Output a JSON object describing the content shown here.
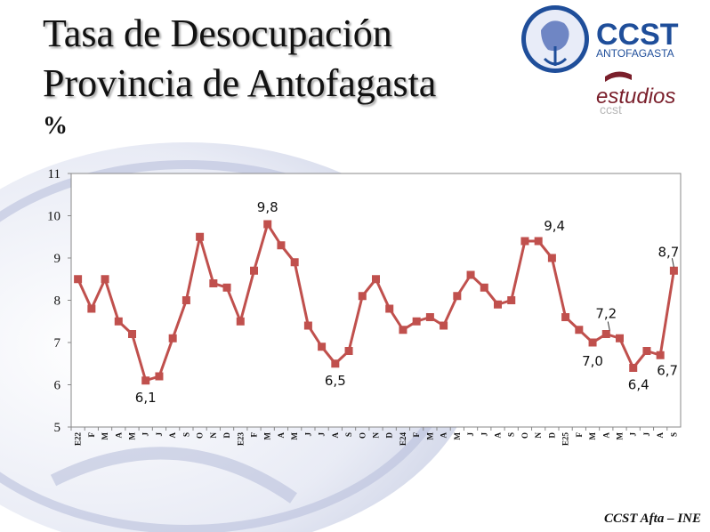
{
  "slide": {
    "title_line1": "Tasa de Desocupación",
    "title_line2": "Provincia de Antofagasta",
    "unit": "%",
    "footer": "CCST Afta – INE"
  },
  "logo": {
    "brand": "CCST",
    "sub": "ANTOFAGASTA",
    "studies": "estudios",
    "studies_reflection": "ccst",
    "emblem_icon": "helmeted-head-anchor-emblem"
  },
  "colors": {
    "series": "#C0504D",
    "logo_blue": "#1F4E9A",
    "studies_maroon": "#7A1F2B"
  },
  "chart_data": {
    "type": "line",
    "ylim": [
      5,
      11
    ],
    "yticks": [
      5,
      6,
      7,
      8,
      9,
      10,
      11
    ],
    "grid": false,
    "legend": "none",
    "categories": [
      "E22",
      "F",
      "M",
      "A",
      "M",
      "J",
      "J",
      "A",
      "S",
      "O",
      "N",
      "D",
      "E23",
      "F",
      "M",
      "A",
      "M",
      "J",
      "J",
      "A",
      "S",
      "O",
      "N",
      "D",
      "E24",
      "F",
      "M",
      "A",
      "M",
      "J",
      "J",
      "A",
      "S",
      "O",
      "N",
      "D",
      "E25",
      "F",
      "M",
      "A",
      "M",
      "J",
      "J",
      "A",
      "S"
    ],
    "series": [
      {
        "values": [
          8.5,
          7.8,
          8.5,
          7.5,
          7.2,
          6.1,
          6.2,
          7.1,
          8.0,
          9.5,
          8.4,
          8.3,
          7.5,
          8.7,
          9.8,
          9.3,
          8.9,
          7.4,
          6.9,
          6.5,
          6.8,
          8.1,
          8.5,
          7.8,
          7.3,
          7.5,
          7.6,
          7.4,
          8.1,
          8.6,
          8.3,
          7.9,
          8.0,
          9.4,
          9.4,
          9.0,
          7.6,
          7.3,
          7.0,
          7.2,
          7.1,
          6.4,
          6.8,
          6.7,
          8.7
        ],
        "data_labels": [
          {
            "index": 5,
            "text": "6,1"
          },
          {
            "index": 14,
            "text": "9,8"
          },
          {
            "index": 19,
            "text": "6,5"
          },
          {
            "index": 34,
            "text": "9,4"
          },
          {
            "index": 38,
            "text": "7,0"
          },
          {
            "index": 39,
            "text": "7,2"
          },
          {
            "index": 41,
            "text": "6,4"
          },
          {
            "index": 43,
            "text": "6,7"
          },
          {
            "index": 44,
            "text": "8,7"
          }
        ]
      }
    ]
  }
}
